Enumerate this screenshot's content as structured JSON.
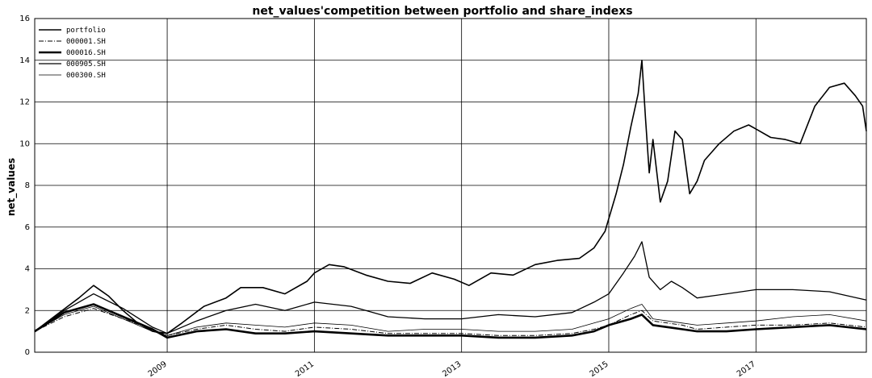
{
  "chart_data": {
    "type": "line",
    "title": "net_values'competition between portfolio and share_indexs",
    "xlabel": "",
    "ylabel": "net_values",
    "ylim": [
      0,
      16
    ],
    "xlim": [
      2007.2,
      2018.5
    ],
    "yticks": [
      "0",
      "2",
      "4",
      "6",
      "8",
      "10",
      "12",
      "14",
      "16"
    ],
    "xticks": [
      "2009",
      "2011",
      "2013",
      "2015",
      "2017"
    ],
    "grid": true,
    "legend_position": "top-left",
    "series": [
      {
        "name": "portfolio",
        "x": [
          2007.2,
          2007.5,
          2007.8,
          2008.0,
          2008.2,
          2008.4,
          2008.6,
          2008.8,
          2009.0,
          2009.2,
          2009.5,
          2009.8,
          2010.0,
          2010.3,
          2010.6,
          2010.9,
          2011.0,
          2011.2,
          2011.4,
          2011.7,
          2012.0,
          2012.3,
          2012.6,
          2012.9,
          2013.1,
          2013.4,
          2013.7,
          2014.0,
          2014.3,
          2014.6,
          2014.8,
          2014.95,
          2015.1,
          2015.2,
          2015.3,
          2015.4,
          2015.45,
          2015.5,
          2015.55,
          2015.6,
          2015.7,
          2015.8,
          2015.9,
          2016.0,
          2016.1,
          2016.2,
          2016.3,
          2016.5,
          2016.7,
          2016.9,
          2017.0,
          2017.2,
          2017.4,
          2017.6,
          2017.8,
          2018.0,
          2018.2,
          2018.35,
          2018.45,
          2018.5
        ],
        "values": [
          1.0,
          1.8,
          2.6,
          3.2,
          2.7,
          2.0,
          1.4,
          1.0,
          0.9,
          1.4,
          2.2,
          2.6,
          3.1,
          3.1,
          2.8,
          3.4,
          3.8,
          4.2,
          4.1,
          3.7,
          3.4,
          3.3,
          3.8,
          3.5,
          3.2,
          3.8,
          3.7,
          4.2,
          4.4,
          4.5,
          5.0,
          5.8,
          7.6,
          9.0,
          10.8,
          12.4,
          14.0,
          11.2,
          8.6,
          10.2,
          7.2,
          8.2,
          10.6,
          10.2,
          7.6,
          8.2,
          9.2,
          10.0,
          10.6,
          10.9,
          10.7,
          10.3,
          10.2,
          10.0,
          11.8,
          12.7,
          12.9,
          12.3,
          11.8,
          10.6
        ]
      },
      {
        "name": "000001.SH",
        "x": [
          2007.2,
          2007.6,
          2008.0,
          2008.4,
          2008.8,
          2009.0,
          2009.4,
          2009.8,
          2010.2,
          2010.6,
          2011.0,
          2011.5,
          2012.0,
          2012.5,
          2013.0,
          2013.5,
          2014.0,
          2014.5,
          2014.8,
          2015.0,
          2015.3,
          2015.45,
          2015.6,
          2015.8,
          2016.0,
          2016.2,
          2016.6,
          2017.0,
          2017.5,
          2018.0,
          2018.5
        ],
        "values": [
          1.0,
          1.7,
          2.1,
          1.6,
          1.1,
          0.8,
          1.1,
          1.3,
          1.1,
          1.0,
          1.2,
          1.1,
          0.9,
          0.9,
          0.9,
          0.8,
          0.8,
          0.9,
          1.1,
          1.3,
          1.8,
          2.0,
          1.5,
          1.4,
          1.3,
          1.1,
          1.2,
          1.3,
          1.3,
          1.4,
          1.2
        ]
      },
      {
        "name": "000016.SH",
        "x": [
          2007.2,
          2007.6,
          2008.0,
          2008.4,
          2008.8,
          2009.0,
          2009.4,
          2009.8,
          2010.2,
          2010.6,
          2011.0,
          2011.5,
          2012.0,
          2012.5,
          2013.0,
          2013.5,
          2014.0,
          2014.5,
          2014.8,
          2015.0,
          2015.3,
          2015.45,
          2015.6,
          2015.8,
          2016.0,
          2016.2,
          2016.6,
          2017.0,
          2017.5,
          2018.0,
          2018.5
        ],
        "values": [
          1.0,
          1.9,
          2.3,
          1.7,
          1.1,
          0.7,
          1.0,
          1.1,
          0.9,
          0.9,
          1.0,
          0.9,
          0.8,
          0.8,
          0.8,
          0.7,
          0.7,
          0.8,
          1.0,
          1.3,
          1.6,
          1.8,
          1.3,
          1.2,
          1.1,
          1.0,
          1.0,
          1.1,
          1.2,
          1.3,
          1.1
        ]
      },
      {
        "name": "000905.SH",
        "x": [
          2007.2,
          2007.6,
          2008.0,
          2008.4,
          2008.8,
          2009.0,
          2009.4,
          2009.8,
          2010.2,
          2010.6,
          2011.0,
          2011.5,
          2012.0,
          2012.5,
          2013.0,
          2013.5,
          2014.0,
          2014.5,
          2014.8,
          2015.0,
          2015.2,
          2015.35,
          2015.45,
          2015.55,
          2015.7,
          2015.85,
          2016.0,
          2016.2,
          2016.6,
          2017.0,
          2017.5,
          2018.0,
          2018.5
        ],
        "values": [
          1.0,
          2.0,
          2.8,
          2.1,
          1.2,
          0.9,
          1.5,
          2.0,
          2.3,
          2.0,
          2.4,
          2.2,
          1.7,
          1.6,
          1.6,
          1.8,
          1.7,
          1.9,
          2.4,
          2.8,
          3.8,
          4.6,
          5.3,
          3.6,
          3.0,
          3.4,
          3.1,
          2.6,
          2.8,
          3.0,
          3.0,
          2.9,
          2.5
        ]
      },
      {
        "name": "000300.SH",
        "x": [
          2007.2,
          2007.6,
          2008.0,
          2008.4,
          2008.8,
          2009.0,
          2009.4,
          2009.8,
          2010.2,
          2010.6,
          2011.0,
          2011.5,
          2012.0,
          2012.5,
          2013.0,
          2013.5,
          2014.0,
          2014.5,
          2014.8,
          2015.0,
          2015.3,
          2015.45,
          2015.6,
          2015.8,
          2016.0,
          2016.2,
          2016.6,
          2017.0,
          2017.5,
          2018.0,
          2018.5
        ],
        "values": [
          1.0,
          1.8,
          2.2,
          1.6,
          1.0,
          0.8,
          1.2,
          1.4,
          1.3,
          1.2,
          1.4,
          1.3,
          1.0,
          1.1,
          1.1,
          1.0,
          1.0,
          1.1,
          1.4,
          1.6,
          2.1,
          2.3,
          1.6,
          1.5,
          1.4,
          1.3,
          1.4,
          1.5,
          1.7,
          1.8,
          1.5
        ]
      }
    ]
  }
}
